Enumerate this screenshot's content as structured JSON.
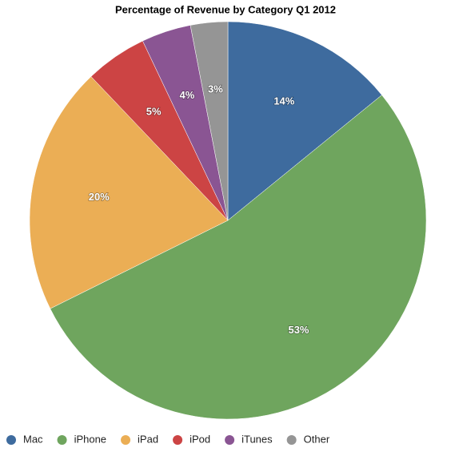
{
  "chart_data": {
    "type": "pie",
    "title": "Percentage of Revenue by Category Q1 2012",
    "categories": [
      "Mac",
      "iPhone",
      "iPad",
      "iPod",
      "iTunes",
      "Other"
    ],
    "values": [
      14,
      53,
      20,
      5,
      4,
      3
    ],
    "value_labels": [
      "14%",
      "53%",
      "20%",
      "5%",
      "4%",
      "3%"
    ],
    "colors": [
      "#3e6b9e",
      "#6fa55e",
      "#ebae55",
      "#cc4444",
      "#8a5593",
      "#959595"
    ],
    "legend": "bottom-left"
  }
}
